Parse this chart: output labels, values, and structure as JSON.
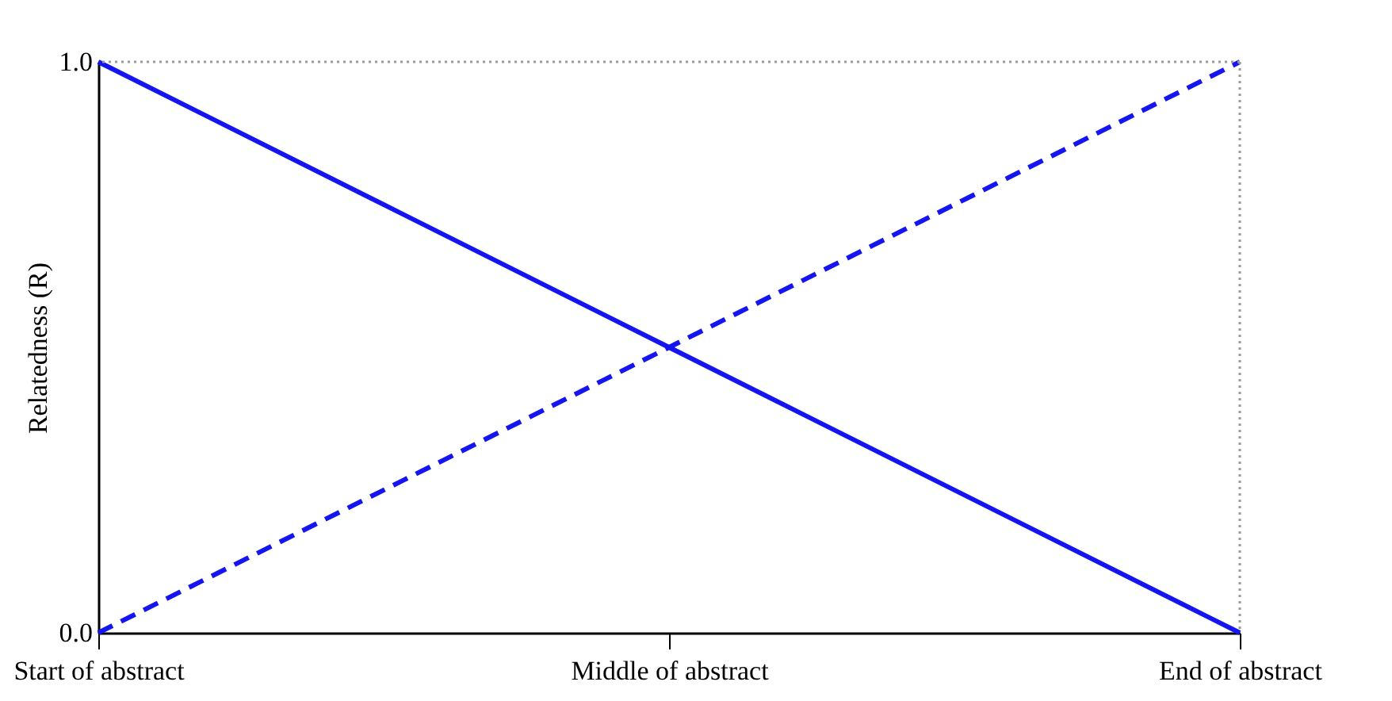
{
  "chart_data": {
    "type": "line",
    "ylabel": "Relatedness (R)",
    "categories": [
      "Start of abstract",
      "Middle of abstract",
      "End of abstract"
    ],
    "series": [
      {
        "color": "#1515f0",
        "values": [
          1.0,
          0.5,
          0.0
        ],
        "line_style": "solid"
      },
      {
        "color": "#1515f0",
        "values": [
          0.0,
          0.5,
          1.0
        ],
        "line_style": "dashed"
      }
    ],
    "ylim": [
      0,
      1
    ],
    "yticks": [
      {
        "value": 0,
        "label": "0.0"
      },
      {
        "value": 1,
        "label": "1.0"
      }
    ],
    "grid": false,
    "marker": "none",
    "ref_lines": [
      {
        "axis": "y",
        "value": 1,
        "color": "#999999",
        "line_style": "dotted"
      },
      {
        "axis": "x",
        "value": "End of abstract",
        "color": "#999999",
        "line_style": "dotted"
      }
    ]
  }
}
